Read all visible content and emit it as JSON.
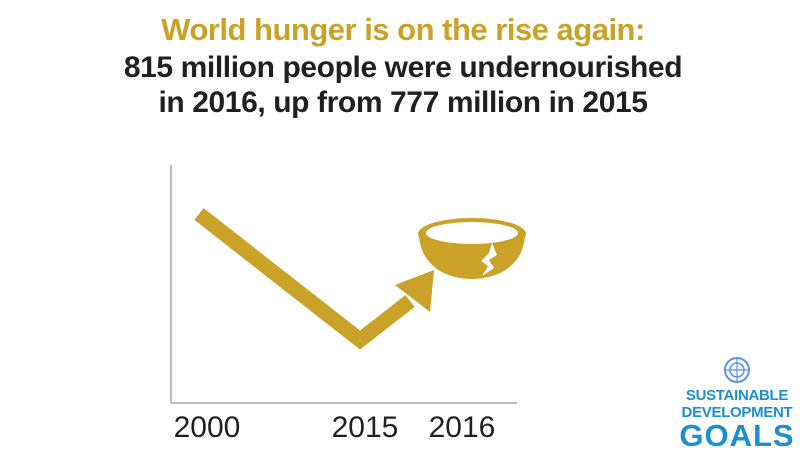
{
  "headline": {
    "line1": "World hunger is on the rise again:",
    "line2a": "815 million people were undernourished",
    "line2b": "in 2016, up from 777 million in 2015"
  },
  "colors": {
    "accent": "#c9a227",
    "text": "#231f20",
    "axis": "#bdbdbd",
    "sdg_blue": "#1d8fce"
  },
  "chart_data": {
    "type": "line",
    "title": "World hunger is on the rise again: 815 million people were undernourished in 2016, up from 777 million in 2015",
    "xlabel": "",
    "ylabel": "",
    "x_tick_labels": [
      "2000",
      "2015",
      "2016"
    ],
    "series": [
      {
        "x": [
          2000,
          2015,
          2016
        ],
        "values": [
          null,
          777,
          815
        ]
      }
    ],
    "icons": [
      "cracked-bowl-icon"
    ]
  },
  "logo": {
    "line1": "SUSTAINABLE",
    "line2": "DEVELOPMENT",
    "line3": "GOALS",
    "icon": "un-emblem-icon"
  }
}
